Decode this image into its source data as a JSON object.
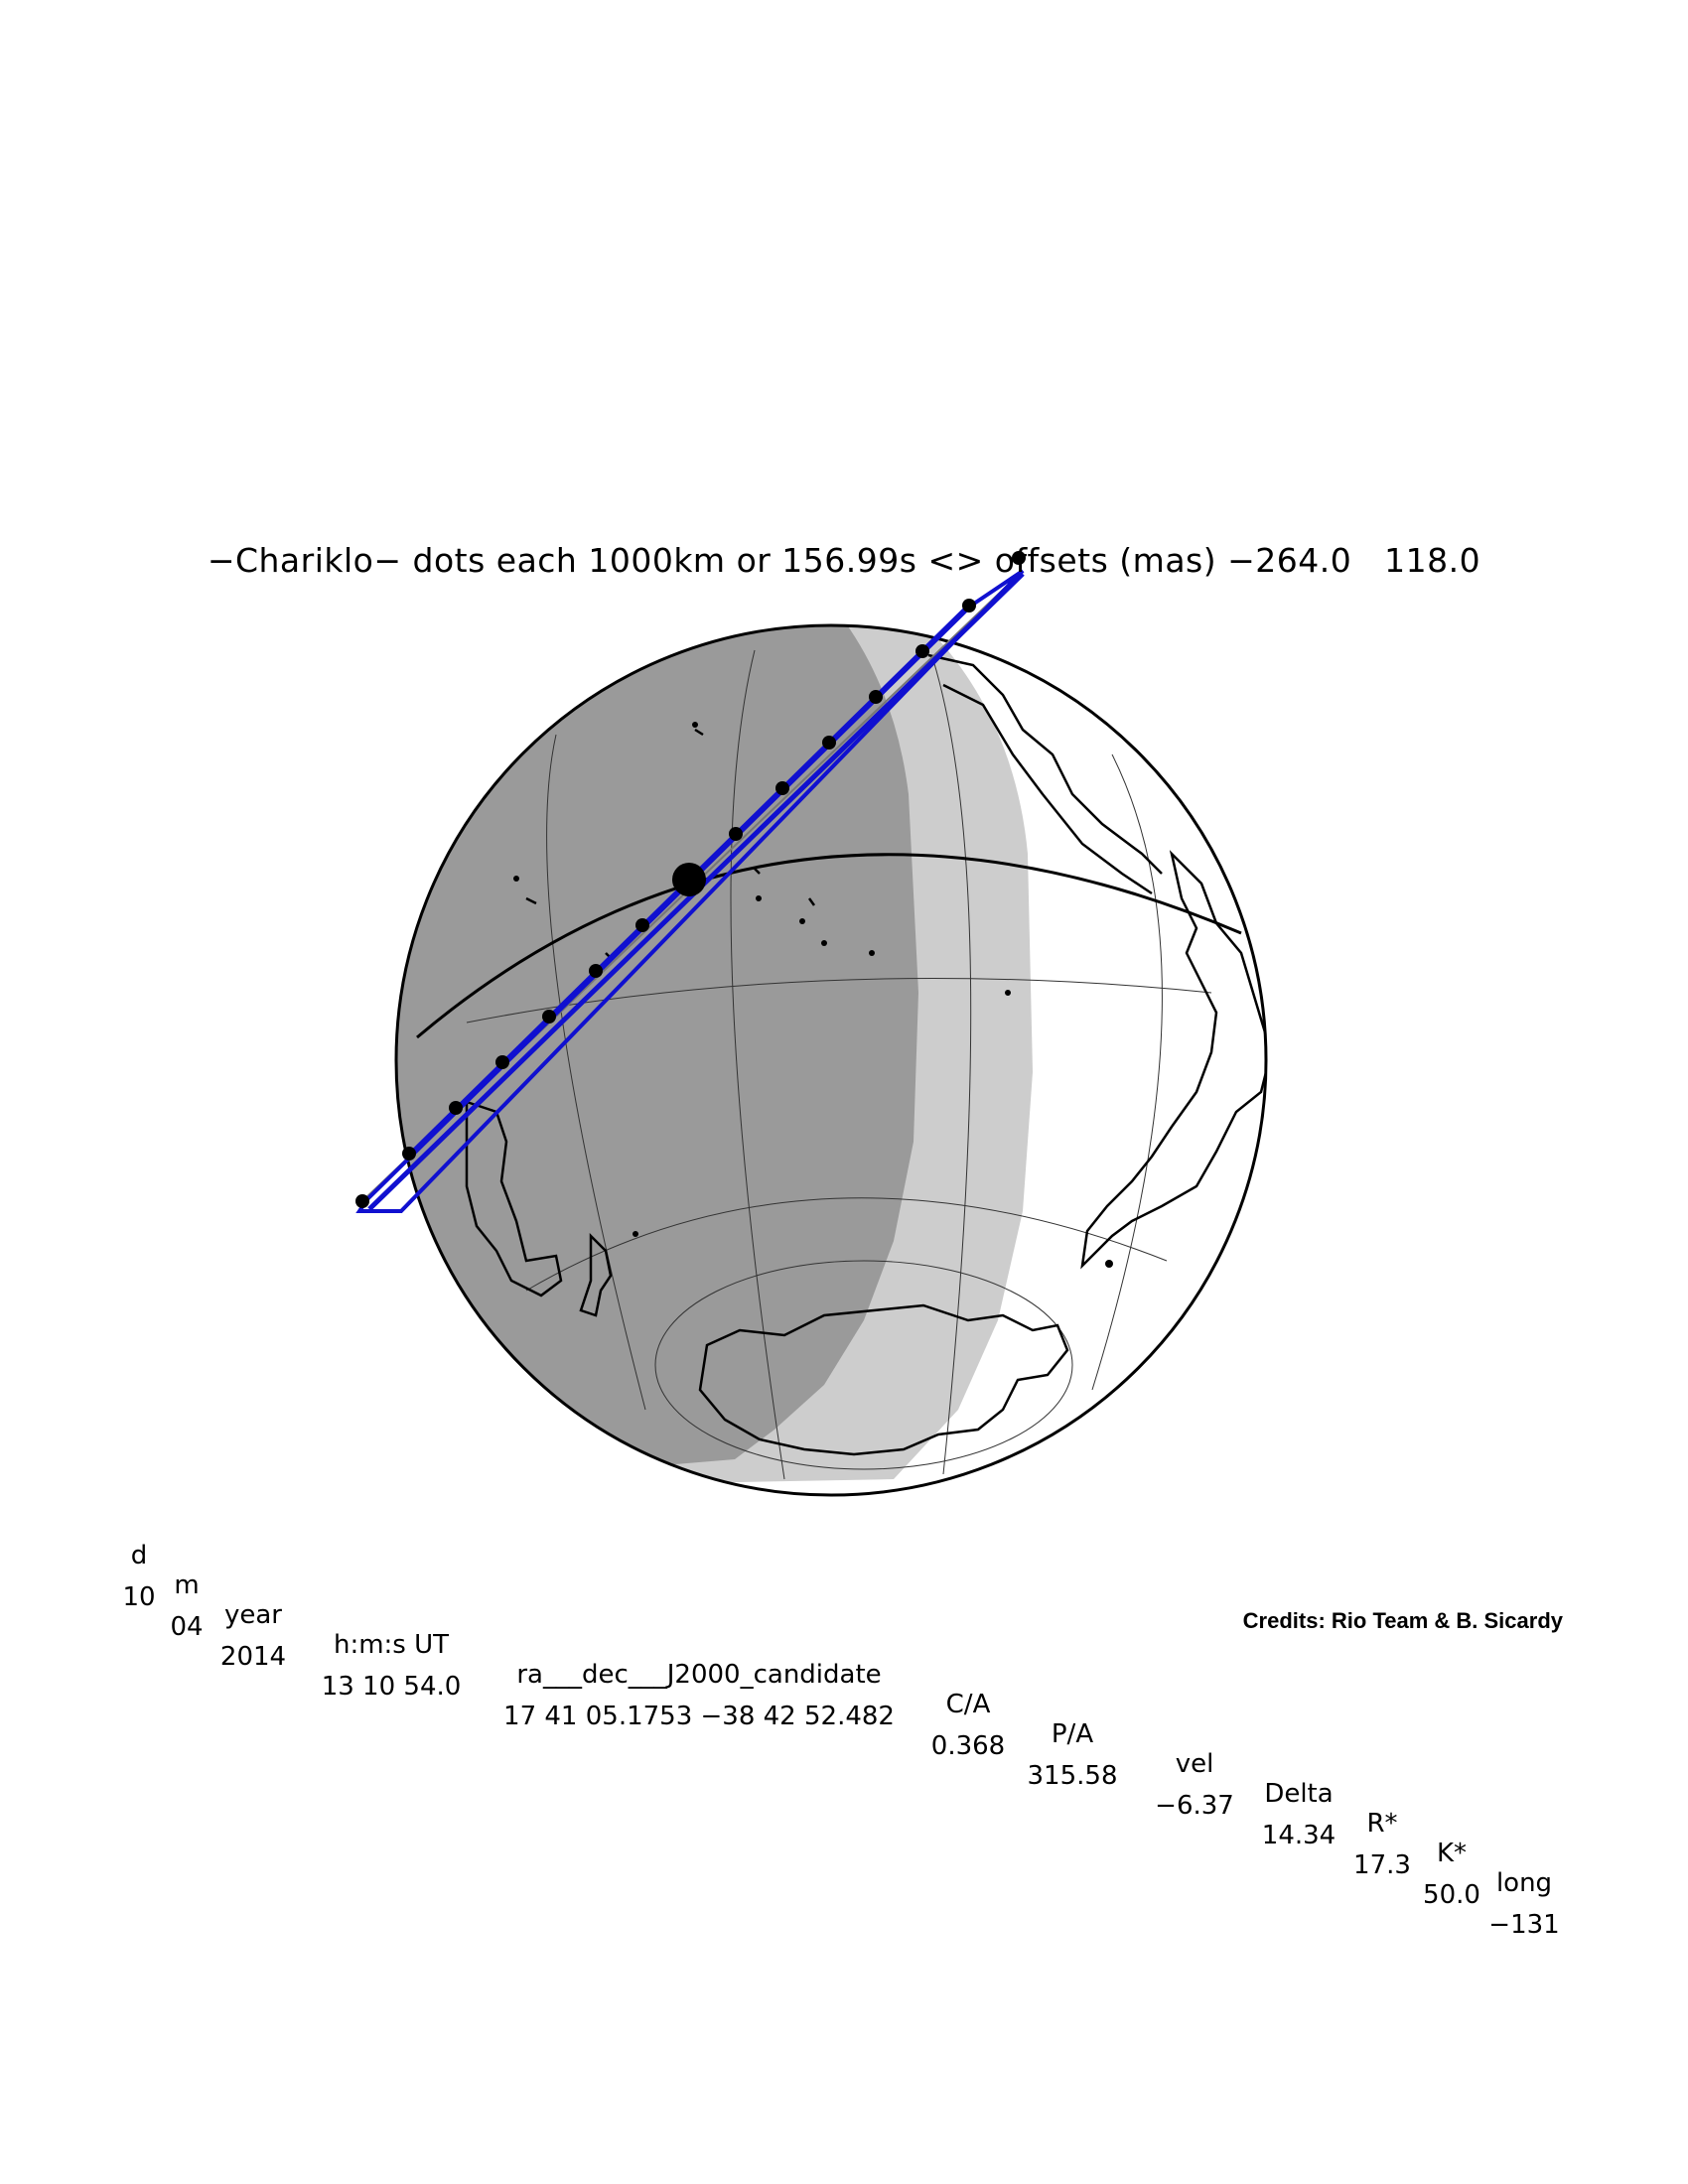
{
  "title": "−Chariklo− dots each 1000km or 156.99s <> offsets (mas) −264.0   118.0",
  "table": {
    "headers": [
      "d",
      "m",
      "year",
      "h:m:s UT",
      "ra___dec___J2000_candidate",
      "C/A",
      "P/A",
      "vel",
      "Delta",
      "R*",
      "K*",
      "long"
    ],
    "values": [
      "10",
      "04",
      "2014",
      "13 10 54.0",
      "17 41 05.1753 −38 42 52.482",
      "0.368",
      "315.58",
      "−6.37",
      "14.34",
      "17.3",
      "50.0",
      "−131"
    ]
  },
  "credits": "Credits: Rio Team & B. Sicardy",
  "colors": {
    "night": "#9a9a9a",
    "twilight": "#cdcdcd",
    "day": "#ffffff",
    "path": "#1010d0",
    "outline": "#000000"
  }
}
